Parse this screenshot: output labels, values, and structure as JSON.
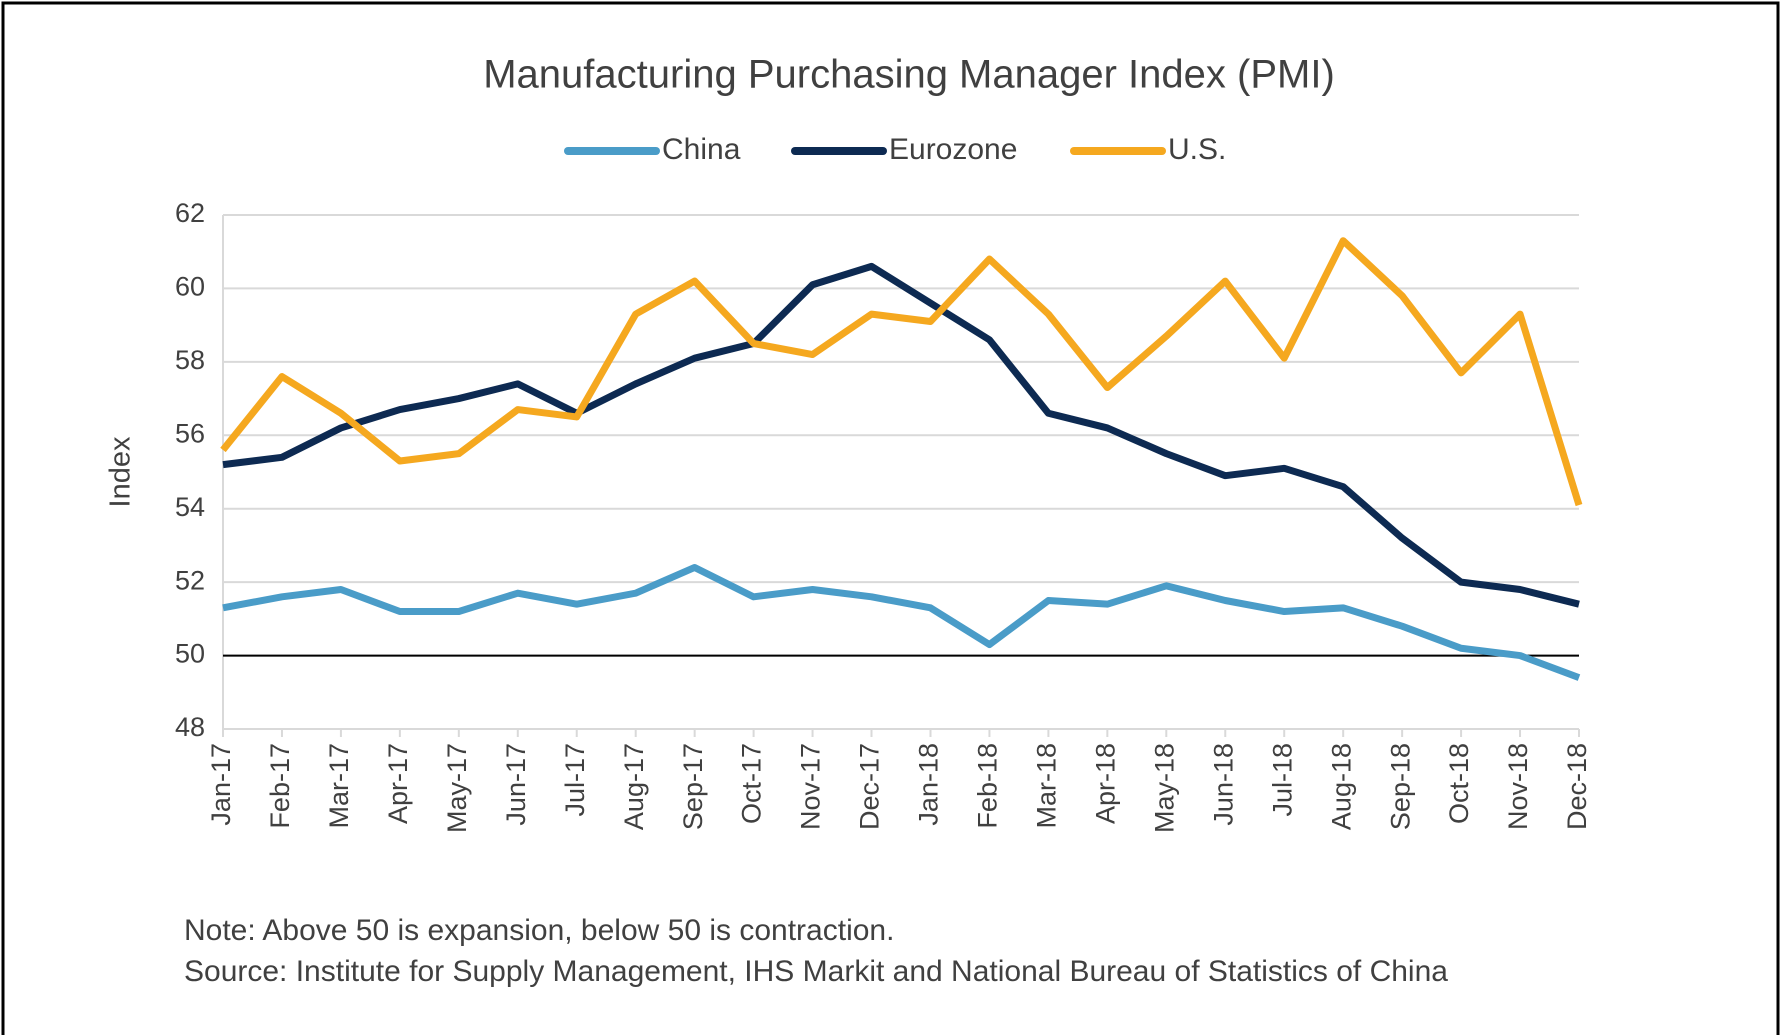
{
  "chart_data": {
    "type": "line",
    "title": "Manufacturing Purchasing Manager Index (PMI)",
    "y_label": "Index",
    "notes": [
      "Note: Above 50 is expansion, below 50 is contraction.",
      "Source: Institute for Supply Management, IHS Markit and National Bureau of Statistics of China"
    ],
    "categories": [
      "Jan-17",
      "Feb-17",
      "Mar-17",
      "Apr-17",
      "May-17",
      "Jun-17",
      "Jul-17",
      "Aug-17",
      "Sep-17",
      "Oct-17",
      "Nov-17",
      "Dec-17",
      "Jan-18",
      "Feb-18",
      "Mar-18",
      "Apr-18",
      "May-18",
      "Jun-18",
      "Jul-18",
      "Aug-18",
      "Sep-18",
      "Oct-18",
      "Nov-18",
      "Dec-18"
    ],
    "series": [
      {
        "name": "China",
        "color": "#4a9cc8",
        "values": [
          51.3,
          51.6,
          51.8,
          51.2,
          51.2,
          51.7,
          51.4,
          51.7,
          52.4,
          51.6,
          51.8,
          51.6,
          51.3,
          50.3,
          51.5,
          51.4,
          51.9,
          51.5,
          51.2,
          51.3,
          50.8,
          50.2,
          50.0,
          49.4
        ]
      },
      {
        "name": "Eurozone",
        "color": "#0d2a52",
        "values": [
          55.2,
          55.4,
          56.2,
          56.7,
          57.0,
          57.4,
          56.6,
          57.4,
          58.1,
          58.5,
          60.1,
          60.6,
          59.6,
          58.6,
          56.6,
          56.2,
          55.5,
          54.9,
          55.1,
          54.6,
          53.2,
          52.0,
          51.8,
          51.4
        ]
      },
      {
        "name": "U.S.",
        "color": "#f5a81f",
        "values": [
          55.6,
          57.6,
          56.6,
          55.3,
          55.5,
          56.7,
          56.5,
          59.3,
          60.2,
          58.5,
          58.2,
          59.3,
          59.1,
          60.8,
          59.3,
          57.3,
          58.7,
          60.2,
          58.1,
          61.3,
          59.8,
          57.7,
          59.3,
          54.1
        ]
      }
    ],
    "ylim": [
      48,
      62
    ],
    "yticks": [
      48,
      50,
      52,
      54,
      56,
      58,
      60,
      62
    ],
    "grid": true,
    "reference_line": 50,
    "legend": "top"
  }
}
